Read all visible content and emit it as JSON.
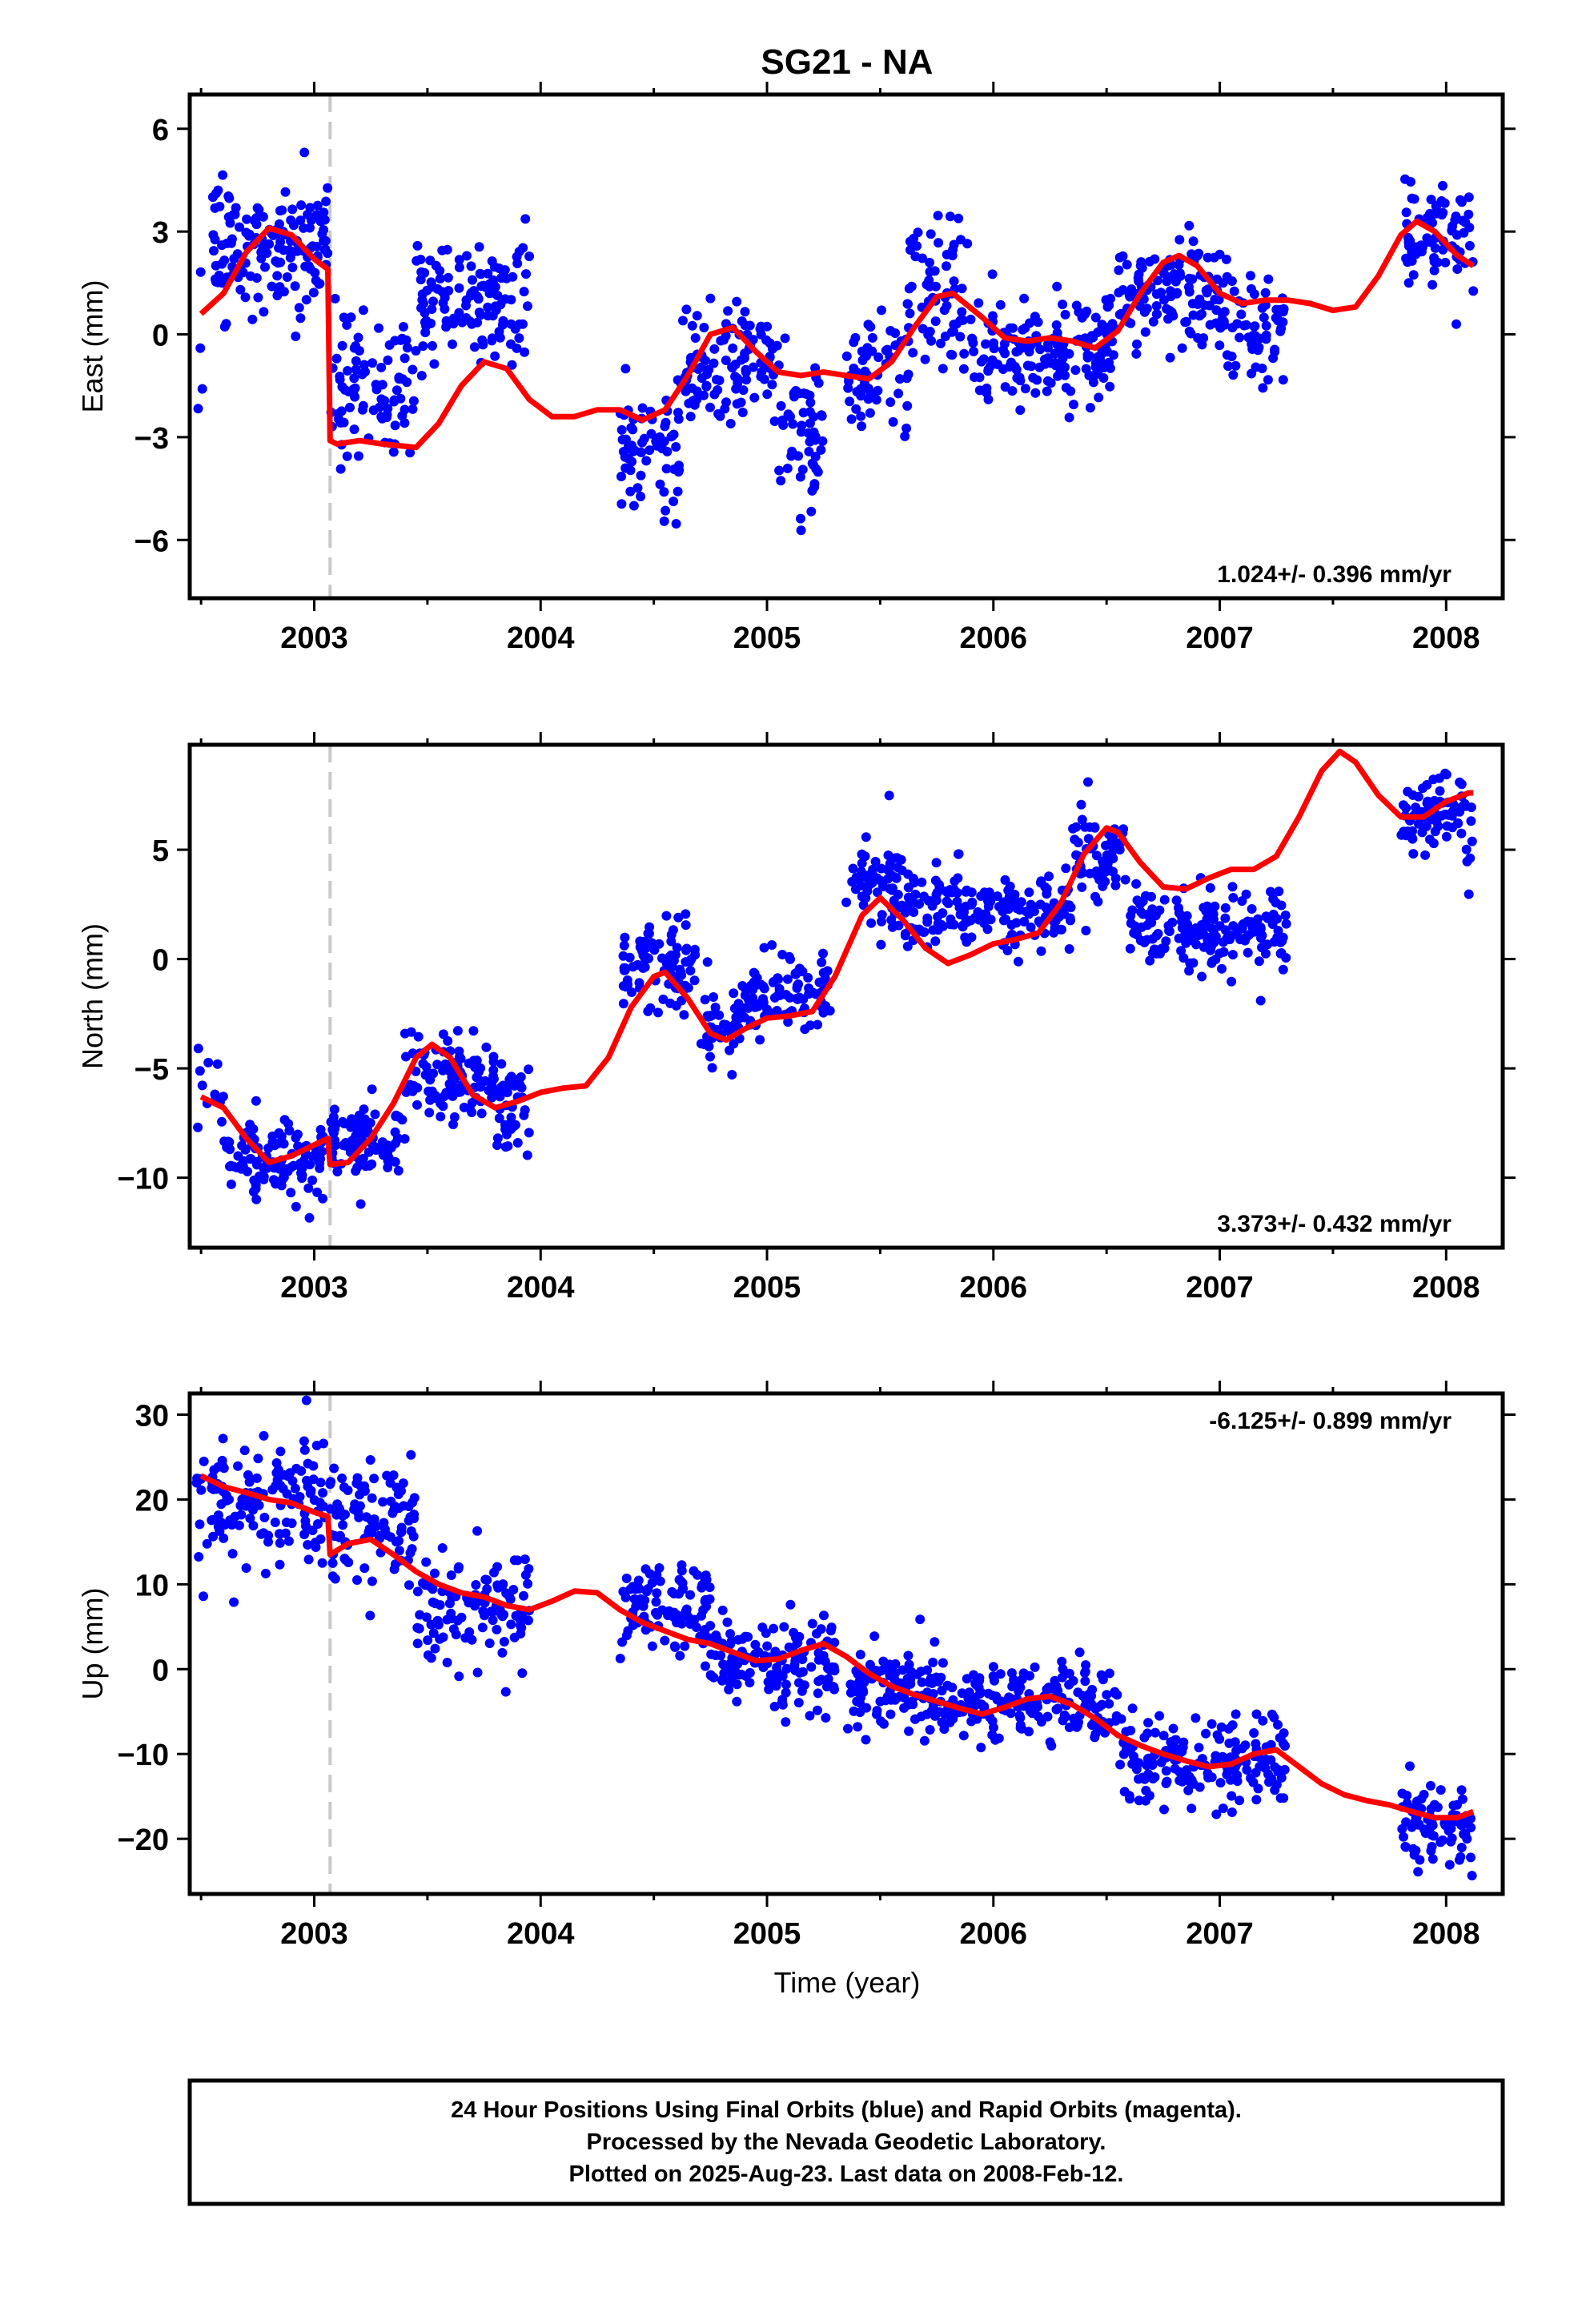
{
  "chart_data": {
    "type": "scatter",
    "title": "SG21 - NA",
    "xlabel": "Time (year)",
    "xlim": [
      2002.45,
      2008.25
    ],
    "xticks": [
      2003,
      2004,
      2005,
      2006,
      2007,
      2008
    ],
    "xtick_labels": [
      "2003",
      "2004",
      "2005",
      "2006",
      "2007",
      "2008"
    ],
    "offset_epoch": 2003.07,
    "colors": {
      "points": "#0000ff",
      "model": "#ff0000",
      "offset_line": "#c8c8c8"
    },
    "panels": [
      {
        "ylabel": "East (mm)",
        "ylim": [
          -7.7,
          7.0
        ],
        "yticks": [
          6,
          3,
          0,
          -3,
          -6
        ],
        "ytick_labels": [
          "6",
          "3",
          "0",
          "−3",
          "−6"
        ],
        "rate_label": "1.024+/- 0.396 mm/yr",
        "rate_position": "bottom-right",
        "model": {
          "x": [
            2002.5,
            2002.6,
            2002.7,
            2002.8,
            2002.9,
            2003.0,
            2003.06,
            2003.07,
            2003.1,
            2003.2,
            2003.3,
            2003.45,
            2003.55,
            2003.65,
            2003.75,
            2003.85,
            2003.95,
            2004.05,
            2004.15,
            2004.25,
            2004.35,
            2004.45,
            2004.55,
            2004.65,
            2004.75,
            2004.85,
            2004.95,
            2005.05,
            2005.15,
            2005.25,
            2005.35,
            2005.45,
            2005.55,
            2005.65,
            2005.75,
            2005.82,
            2005.95,
            2006.05,
            2006.15,
            2006.25,
            2006.35,
            2006.45,
            2006.55,
            2006.65,
            2006.75,
            2006.82,
            2006.9,
            2007.0,
            2007.1,
            2007.2,
            2007.3,
            2007.4,
            2007.5,
            2007.6,
            2007.7,
            2007.8,
            2007.87,
            2007.95,
            2008.05,
            2008.12
          ],
          "y": [
            0.6,
            1.2,
            2.4,
            3.1,
            2.9,
            2.2,
            1.9,
            -3.1,
            -3.2,
            -3.1,
            -3.2,
            -3.3,
            -2.6,
            -1.5,
            -0.8,
            -1.0,
            -1.9,
            -2.4,
            -2.4,
            -2.2,
            -2.2,
            -2.5,
            -2.2,
            -1.2,
            0.0,
            0.2,
            -0.5,
            -1.1,
            -1.2,
            -1.1,
            -1.2,
            -1.3,
            -0.8,
            0.2,
            1.1,
            1.2,
            0.5,
            -0.1,
            -0.2,
            -0.1,
            -0.2,
            -0.4,
            0.1,
            1.2,
            2.1,
            2.3,
            2.0,
            1.2,
            0.9,
            1.0,
            1.0,
            0.9,
            0.7,
            0.8,
            1.7,
            2.9,
            3.3,
            3.0,
            2.3,
            2.0
          ]
        },
        "clusters": [
          {
            "x": [
              2002.48,
              2002.53
            ],
            "y": -0.6,
            "spread": 1.8,
            "n": 4
          },
          {
            "x": [
              2002.55,
              2003.06
            ],
            "y": 2.6,
            "spread": 1.3,
            "n": 150
          },
          {
            "x": [
              2003.07,
              2003.45
            ],
            "y": -1.5,
            "spread": 1.4,
            "n": 90
          },
          {
            "x": [
              2003.45,
              2003.95
            ],
            "y": 1.0,
            "spread": 1.2,
            "n": 130
          },
          {
            "x": [
              2004.35,
              2004.62
            ],
            "y": -3.5,
            "spread": 1.4,
            "n": 70
          },
          {
            "x": [
              2004.62,
              2005.05
            ],
            "y": -0.8,
            "spread": 1.2,
            "n": 110
          },
          {
            "x": [
              2005.05,
              2005.25
            ],
            "y": -3.0,
            "spread": 1.5,
            "n": 55
          },
          {
            "x": [
              2005.35,
              2005.62
            ],
            "y": -1.2,
            "spread": 1.1,
            "n": 60
          },
          {
            "x": [
              2005.62,
              2005.9
            ],
            "y": 1.2,
            "spread": 1.4,
            "n": 70
          },
          {
            "x": [
              2005.9,
              2006.55
            ],
            "y": -0.5,
            "spread": 1.0,
            "n": 160
          },
          {
            "x": [
              2006.55,
              2007.0
            ],
            "y": 1.3,
            "spread": 1.1,
            "n": 120
          },
          {
            "x": [
              2007.0,
              2007.3
            ],
            "y": 0.2,
            "spread": 1.2,
            "n": 70
          },
          {
            "x": [
              2007.8,
              2008.12
            ],
            "y": 2.7,
            "spread": 1.1,
            "n": 80
          }
        ]
      },
      {
        "ylabel": "North (mm)",
        "ylim": [
          -13.2,
          9.8
        ],
        "yticks": [
          5,
          0,
          -5,
          -10
        ],
        "ytick_labels": [
          "5",
          "0",
          "−5",
          "−10"
        ],
        "rate_label": "3.373+/- 0.432 mm/yr",
        "rate_position": "bottom-right",
        "model": {
          "x": [
            2002.5,
            2002.6,
            2002.7,
            2002.8,
            2002.9,
            2003.0,
            2003.06,
            2003.07,
            2003.15,
            2003.25,
            2003.35,
            2003.45,
            2003.52,
            2003.6,
            2003.7,
            2003.8,
            2003.9,
            2004.0,
            2004.1,
            2004.2,
            2004.3,
            2004.4,
            2004.5,
            2004.55,
            2004.65,
            2004.75,
            2004.82,
            2004.9,
            2005.0,
            2005.1,
            2005.2,
            2005.3,
            2005.42,
            2005.5,
            2005.6,
            2005.7,
            2005.8,
            2005.9,
            2006.0,
            2006.1,
            2006.2,
            2006.3,
            2006.4,
            2006.5,
            2006.55,
            2006.65,
            2006.75,
            2006.85,
            2006.95,
            2007.05,
            2007.15,
            2007.25,
            2007.35,
            2007.45,
            2007.53,
            2007.6,
            2007.7,
            2007.8,
            2007.9,
            2008.0,
            2008.1,
            2008.12
          ],
          "y": [
            -6.3,
            -6.8,
            -8.2,
            -9.3,
            -9.0,
            -8.5,
            -8.2,
            -9.4,
            -9.3,
            -8.2,
            -6.6,
            -4.5,
            -3.9,
            -4.5,
            -6.2,
            -6.8,
            -6.5,
            -6.1,
            -5.9,
            -5.8,
            -4.5,
            -2.2,
            -0.8,
            -0.6,
            -1.8,
            -3.4,
            -3.7,
            -3.2,
            -2.7,
            -2.6,
            -2.4,
            -0.8,
            2.0,
            2.8,
            1.8,
            0.5,
            -0.2,
            0.2,
            0.7,
            0.9,
            1.2,
            2.6,
            4.8,
            6.0,
            5.8,
            4.4,
            3.3,
            3.2,
            3.7,
            4.1,
            4.1,
            4.7,
            6.5,
            8.6,
            9.5,
            9.0,
            7.5,
            6.5,
            6.5,
            7.2,
            7.6,
            7.6
          ]
        },
        "clusters": [
          {
            "x": [
              2002.48,
              2002.6
            ],
            "y": -6.0,
            "spread": 1.2,
            "n": 12
          },
          {
            "x": [
              2002.6,
              2003.06
            ],
            "y": -9.0,
            "spread": 1.3,
            "n": 120
          },
          {
            "x": [
              2003.07,
              2003.4
            ],
            "y": -8.3,
            "spread": 1.2,
            "n": 90
          },
          {
            "x": [
              2003.4,
              2003.8
            ],
            "y": -5.5,
            "spread": 1.3,
            "n": 100
          },
          {
            "x": [
              2003.8,
              2003.95
            ],
            "y": -6.8,
            "spread": 1.6,
            "n": 40
          },
          {
            "x": [
              2004.35,
              2004.7
            ],
            "y": -0.5,
            "spread": 1.5,
            "n": 90
          },
          {
            "x": [
              2004.7,
              2004.9
            ],
            "y": -3.0,
            "spread": 1.4,
            "n": 45
          },
          {
            "x": [
              2004.9,
              2005.28
            ],
            "y": -1.7,
            "spread": 1.2,
            "n": 100
          },
          {
            "x": [
              2005.35,
              2005.6
            ],
            "y": 3.5,
            "spread": 1.4,
            "n": 60
          },
          {
            "x": [
              2005.6,
              2006.35
            ],
            "y": 2.2,
            "spread": 1.2,
            "n": 180
          },
          {
            "x": [
              2006.35,
              2006.6
            ],
            "y": 4.8,
            "spread": 1.3,
            "n": 70
          },
          {
            "x": [
              2006.6,
              2007.0
            ],
            "y": 1.5,
            "spread": 1.4,
            "n": 110
          },
          {
            "x": [
              2007.0,
              2007.3
            ],
            "y": 1.5,
            "spread": 1.3,
            "n": 70
          },
          {
            "x": [
              2007.8,
              2008.12
            ],
            "y": 6.6,
            "spread": 1.4,
            "n": 80
          }
        ]
      },
      {
        "ylabel": "Up (mm)",
        "ylim": [
          -26.5,
          32.5
        ],
        "yticks": [
          30,
          20,
          10,
          0,
          -10,
          -20
        ],
        "ytick_labels": [
          "30",
          "20",
          "10",
          "0",
          "−10",
          "−20"
        ],
        "rate_label": "-6.125+/- 0.899 mm/yr",
        "rate_position": "top-right",
        "model": {
          "x": [
            2002.5,
            2002.6,
            2002.7,
            2002.8,
            2002.9,
            2003.0,
            2003.06,
            2003.07,
            2003.15,
            2003.25,
            2003.35,
            2003.45,
            2003.55,
            2003.65,
            2003.75,
            2003.85,
            2003.95,
            2004.05,
            2004.15,
            2004.25,
            2004.35,
            2004.45,
            2004.55,
            2004.65,
            2004.75,
            2004.85,
            2004.95,
            2005.05,
            2005.15,
            2005.25,
            2005.35,
            2005.45,
            2005.55,
            2005.65,
            2005.75,
            2005.85,
            2005.95,
            2006.05,
            2006.15,
            2006.25,
            2006.35,
            2006.45,
            2006.55,
            2006.65,
            2006.75,
            2006.85,
            2006.95,
            2007.05,
            2007.15,
            2007.25,
            2007.35,
            2007.45,
            2007.55,
            2007.65,
            2007.75,
            2007.85,
            2007.95,
            2008.05,
            2008.12
          ],
          "y": [
            22.8,
            21.5,
            20.8,
            20.0,
            19.6,
            18.5,
            18.0,
            13.5,
            14.8,
            15.3,
            13.5,
            11.5,
            10.0,
            9.0,
            8.5,
            7.5,
            7.0,
            8.0,
            9.2,
            9.0,
            7.0,
            5.5,
            4.5,
            3.5,
            3.0,
            2.0,
            1.0,
            1.2,
            2.2,
            3.0,
            1.5,
            -0.5,
            -2.0,
            -3.0,
            -3.8,
            -4.6,
            -5.3,
            -4.5,
            -3.5,
            -3.2,
            -4.2,
            -5.8,
            -7.8,
            -9.0,
            -10.0,
            -10.8,
            -11.5,
            -11.2,
            -10.0,
            -9.5,
            -11.5,
            -13.5,
            -14.8,
            -15.5,
            -16.0,
            -16.8,
            -17.5,
            -17.5,
            -16.8
          ]
        },
        "clusters": [
          {
            "x": [
              2002.48,
              2003.06
            ],
            "y": 20.0,
            "spread": 4.5,
            "n": 140
          },
          {
            "x": [
              2003.07,
              2003.45
            ],
            "y": 17.0,
            "spread": 4.5,
            "n": 100
          },
          {
            "x": [
              2003.45,
              2003.95
            ],
            "y": 7.5,
            "spread": 4.0,
            "n": 110
          },
          {
            "x": [
              2004.35,
              2004.75
            ],
            "y": 6.5,
            "spread": 3.8,
            "n": 100
          },
          {
            "x": [
              2004.75,
              2005.3
            ],
            "y": 0.5,
            "spread": 3.8,
            "n": 140
          },
          {
            "x": [
              2005.35,
              2005.7
            ],
            "y": -2.5,
            "spread": 3.5,
            "n": 90
          },
          {
            "x": [
              2005.7,
              2006.55
            ],
            "y": -4.0,
            "spread": 3.2,
            "n": 200
          },
          {
            "x": [
              2006.55,
              2007.3
            ],
            "y": -11.0,
            "spread": 3.3,
            "n": 170
          },
          {
            "x": [
              2007.8,
              2008.12
            ],
            "y": -18.5,
            "spread": 3.0,
            "n": 80
          }
        ]
      }
    ]
  },
  "footer": {
    "line1": "24 Hour Positions Using Final Orbits (blue) and Rapid Orbits (magenta).",
    "line2": "Processed by the Nevada Geodetic Laboratory.",
    "line3": "Plotted on 2025-Aug-23. Last data on 2008-Feb-12."
  }
}
